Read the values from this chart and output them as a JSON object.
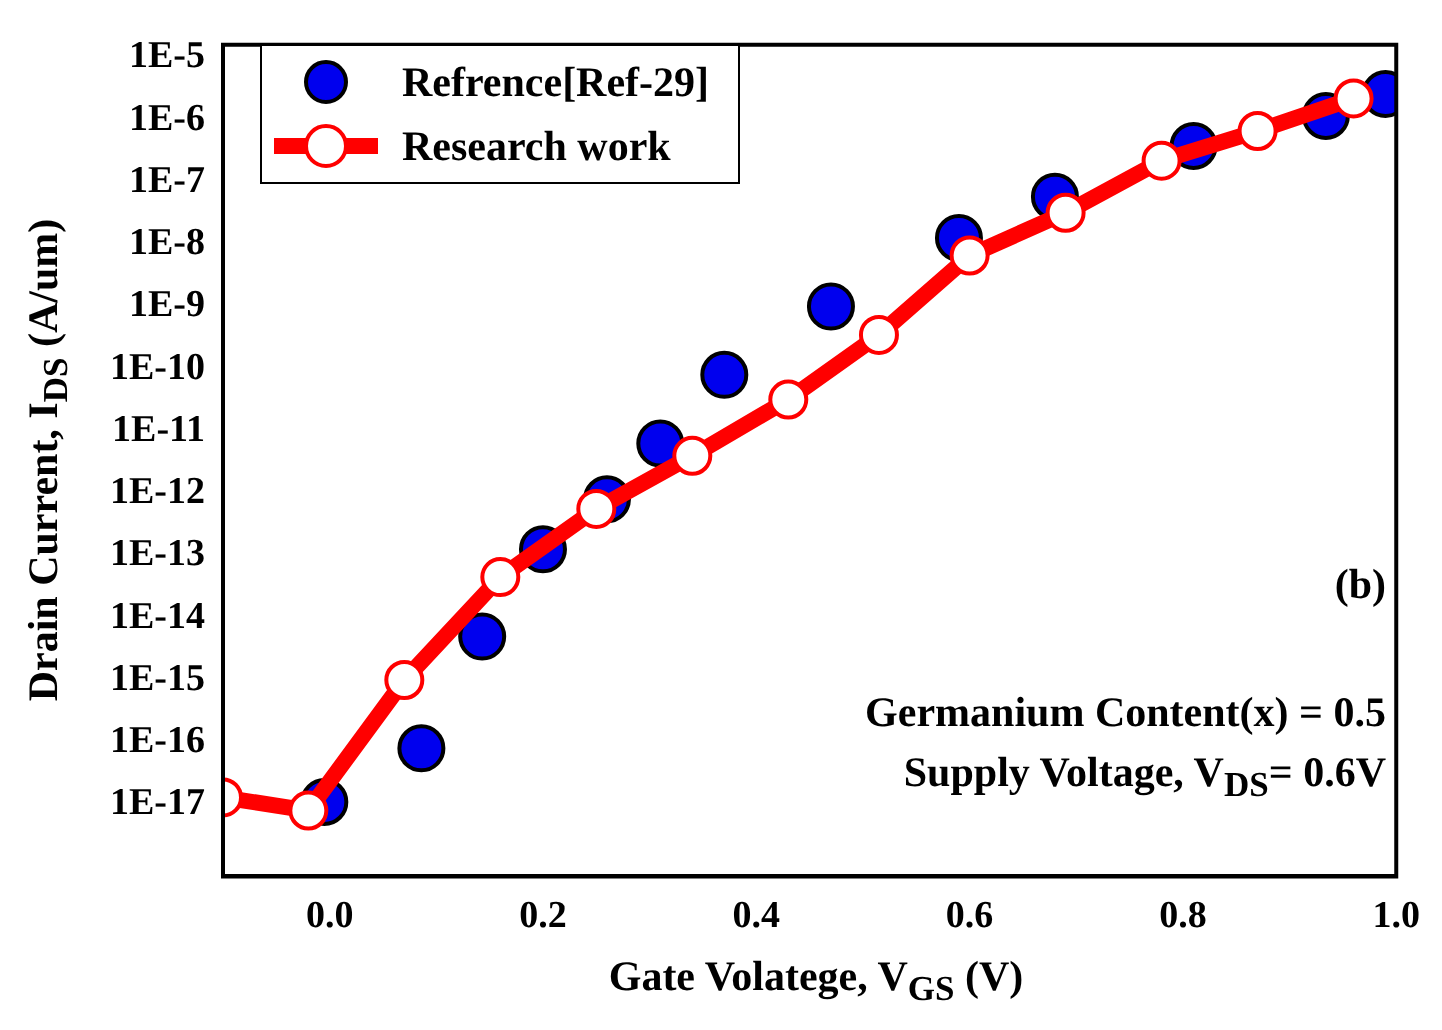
{
  "chart_data": {
    "type": "scatter",
    "xlabel": "Gate Volatege, V$_{GS}$ (V)",
    "ylabel": "Drain Current, I$_{DS}$  (A/um)",
    "log": "y",
    "grid": false,
    "legend": "top left",
    "xlim": [
      -0.1,
      1.0
    ],
    "xticks": [
      {
        "value": 0,
        "label": "0.0"
      },
      0.2,
      0.4,
      0.6,
      0.8,
      {
        "value": 1,
        "label": "1.0"
      }
    ],
    "ylim": [
      7e-19,
      1.6e-05
    ],
    "yticks": [
      {
        "value": 1e-17,
        "label": "1E-17"
      },
      {
        "value": 1e-16,
        "label": "1E-16"
      },
      {
        "value": 1e-15,
        "label": "1E-15"
      },
      {
        "value": 1e-14,
        "label": "1E-14"
      },
      {
        "value": 1e-13,
        "label": "1E-13"
      },
      {
        "value": 1e-12,
        "label": "1E-12"
      },
      {
        "value": 1e-11,
        "label": "1E-11"
      },
      {
        "value": 1e-10,
        "label": "1E-10"
      },
      {
        "value": 1e-09,
        "label": "1E-9"
      },
      {
        "value": 1e-08,
        "label": "1E-8"
      },
      {
        "value": 1e-07,
        "label": "1E-7"
      },
      {
        "value": 1e-06,
        "label": "1E-6"
      },
      {
        "value": 1e-05,
        "label": "1E-5"
      }
    ],
    "series": [
      {
        "name": "Refrence[Ref-29]",
        "type": "scatter",
        "marker": "circle",
        "color": "#0000ee",
        "x": [
          -0.005,
          0.086,
          0.143,
          0.2,
          0.26,
          0.31,
          0.37,
          0.47,
          0.59,
          0.68,
          0.81,
          0.934,
          0.99
        ],
        "values": [
          1.1e-17,
          8e-17,
          5e-15,
          1.26e-13,
          8e-13,
          6.3e-12,
          8e-11,
          1e-09,
          1.26e-08,
          5.8e-08,
          3.8e-07,
          1.15e-06,
          2.6e-06
        ]
      },
      {
        "name": "Research work",
        "type": "line",
        "marker": "circle",
        "line_style": "solid",
        "color": "#ff0000",
        "x": [
          -0.1,
          -0.02,
          0.07,
          0.16,
          0.25,
          0.34,
          0.43,
          0.515,
          0.6,
          0.69,
          0.78,
          0.87,
          0.96
        ],
        "values": [
          1.3e-17,
          8e-18,
          1e-15,
          4.5e-14,
          5.6e-13,
          4e-12,
          3.2e-11,
          3.5e-10,
          6.6e-09,
          3.2e-08,
          2.2e-07,
          6.6e-07,
          2.2e-06
        ]
      }
    ],
    "annotations": [
      "(b)",
      "Germanium Content(x) = 0.5",
      "Supply Voltage, V$_{DS}$= 0.6V"
    ]
  }
}
